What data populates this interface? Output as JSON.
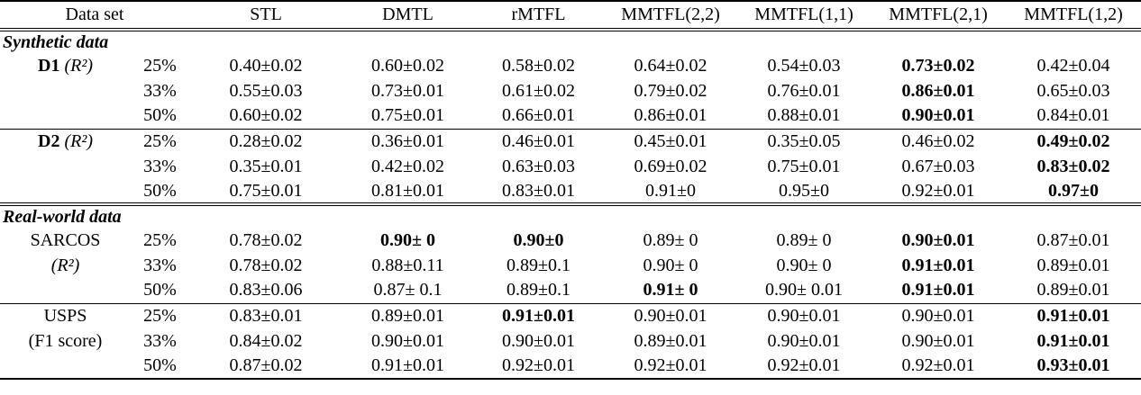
{
  "table": {
    "headers": [
      {
        "label": "Data set",
        "colspan": 2
      },
      {
        "label": "STL"
      },
      {
        "label": "DMTL"
      },
      {
        "label": "rMTFL"
      },
      {
        "label": "MMTFL(2,2)"
      },
      {
        "label": "MMTFL(1,1)"
      },
      {
        "label": "MMTFL(2,1)"
      },
      {
        "label": "MMTFL(1,2)"
      }
    ],
    "sections": [
      {
        "title": "Synthetic data",
        "groups": [
          {
            "rows": [
              {
                "label_bold": "D1",
                "label_math": "(R²)",
                "pct": "25%",
                "cells": [
                  "0.40±0.02",
                  "0.60±0.02",
                  "0.58±0.02",
                  "0.64±0.02",
                  "0.54±0.03",
                  {
                    "t": "0.73±0.02",
                    "b": true
                  },
                  "0.42±0.04"
                ]
              },
              {
                "pct": "33%",
                "cells": [
                  "0.55±0.03",
                  "0.73±0.01",
                  "0.61±0.02",
                  "0.79±0.02",
                  "0.76±0.01",
                  {
                    "t": "0.86±0.01",
                    "b": true
                  },
                  "0.65±0.03"
                ]
              },
              {
                "pct": "50%",
                "cells": [
                  "0.60±0.02",
                  "0.75±0.01",
                  "0.66±0.01",
                  "0.86±0.01",
                  "0.88±0.01",
                  {
                    "t": "0.90±0.01",
                    "b": true
                  },
                  "0.84±0.01"
                ]
              }
            ]
          },
          {
            "rows": [
              {
                "label_bold": "D2",
                "label_math": "(R²)",
                "pct": "25%",
                "cells": [
                  "0.28±0.02",
                  "0.36±0.01",
                  "0.46±0.01",
                  "0.45±0.01",
                  "0.35±0.05",
                  "0.46±0.02",
                  {
                    "t": "0.49±0.02",
                    "b": true
                  }
                ]
              },
              {
                "pct": "33%",
                "cells": [
                  "0.35±0.01",
                  "0.42±0.02",
                  "0.63±0.03",
                  "0.69±0.02",
                  "0.75±0.01",
                  "0.67±0.03",
                  {
                    "t": "0.83±0.02",
                    "b": true
                  }
                ]
              },
              {
                "pct": "50%",
                "cells": [
                  "0.75±0.01",
                  "0.81±0.01",
                  "0.83±0.01",
                  "0.91±0",
                  "0.95±0",
                  "0.92±0.01",
                  {
                    "t": "0.97±0",
                    "b": true
                  }
                ]
              }
            ]
          }
        ]
      },
      {
        "title": "Real-world data",
        "groups": [
          {
            "rows": [
              {
                "label_plain": "SARCOS",
                "pct": "25%",
                "cells": [
                  "0.78±0.02",
                  {
                    "t": "0.90± 0",
                    "b": true
                  },
                  {
                    "t": "0.90±0",
                    "b": true
                  },
                  "0.89± 0",
                  "0.89± 0",
                  {
                    "t": "0.90±0.01",
                    "b": true
                  },
                  "0.87±0.01"
                ]
              },
              {
                "label_math": "(R²)",
                "pct": "33%",
                "cells": [
                  "0.78±0.02",
                  "0.88±0.11",
                  "0.89±0.1",
                  "0.90± 0",
                  "0.90± 0",
                  {
                    "t": "0.91±0.01",
                    "b": true
                  },
                  "0.89±0.01"
                ]
              },
              {
                "pct": "50%",
                "cells": [
                  "0.83±0.06",
                  "0.87± 0.1",
                  "0.89±0.1",
                  {
                    "t": "0.91± 0",
                    "b": true
                  },
                  "0.90± 0.01",
                  {
                    "t": "0.91±0.01",
                    "b": true
                  },
                  "0.89±0.01"
                ]
              }
            ]
          },
          {
            "rows": [
              {
                "label_plain": "USPS",
                "pct": "25%",
                "cells": [
                  "0.83±0.01",
                  "0.89±0.01",
                  {
                    "t": "0.91±0.01",
                    "b": true
                  },
                  "0.90±0.01",
                  "0.90±0.01",
                  "0.90±0.01",
                  {
                    "t": "0.91±0.01",
                    "b": true
                  }
                ]
              },
              {
                "label_plain": "(F1 score)",
                "pct": "33%",
                "cells": [
                  "0.84±0.02",
                  "0.90±0.01",
                  "0.90±0.01",
                  "0.89±0.01",
                  "0.90±0.01",
                  "0.90±0.01",
                  {
                    "t": "0.91±0.01",
                    "b": true
                  }
                ]
              },
              {
                "pct": "50%",
                "cells": [
                  "0.87±0.02",
                  "0.91±0.01",
                  "0.92±0.01",
                  "0.92±0.01",
                  "0.92±0.01",
                  "0.92±0.01",
                  {
                    "t": "0.93±0.01",
                    "b": true
                  }
                ]
              }
            ]
          }
        ]
      }
    ]
  }
}
